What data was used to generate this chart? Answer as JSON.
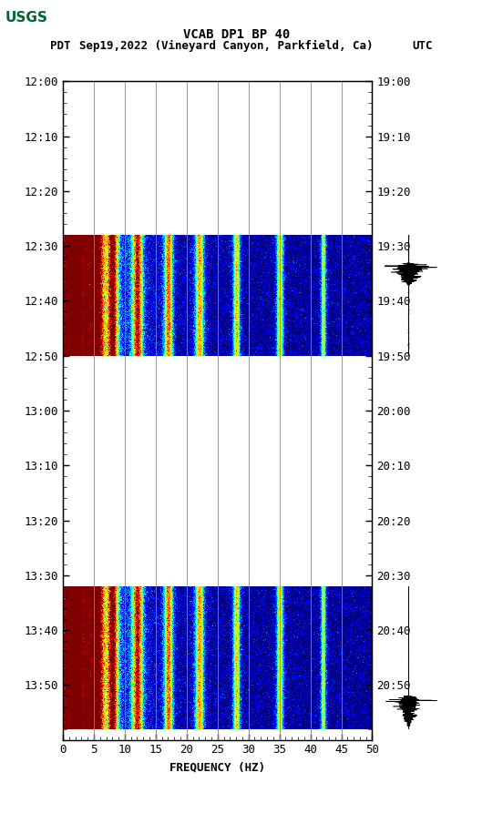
{
  "title_line1": "VCAB DP1 BP 40",
  "title_line2_pdt": "PDT",
  "title_line2_date": "Sep19,2022 (Vineyard Canyon, Parkfield, Ca)",
  "title_line2_utc": "UTC",
  "left_yticks": [
    "12:00",
    "12:10",
    "12:20",
    "12:30",
    "12:40",
    "12:50",
    "13:00",
    "13:10",
    "13:20",
    "13:30",
    "13:40",
    "13:50"
  ],
  "right_yticks": [
    "19:00",
    "19:10",
    "19:20",
    "19:30",
    "19:40",
    "19:50",
    "20:00",
    "20:10",
    "20:20",
    "20:30",
    "20:40",
    "20:50"
  ],
  "xlabel": "FREQUENCY (HZ)",
  "xticks": [
    0,
    5,
    10,
    15,
    20,
    25,
    30,
    35,
    40,
    45,
    50
  ],
  "freq_min": 0,
  "freq_max": 50,
  "bg_color": "#ffffff",
  "event1_tmin": 28,
  "event1_tmax": 50,
  "event2_tmin": 92,
  "event2_tmax": 118,
  "total_minutes": 120,
  "colormap": "jet",
  "usgs_color": "#006633"
}
